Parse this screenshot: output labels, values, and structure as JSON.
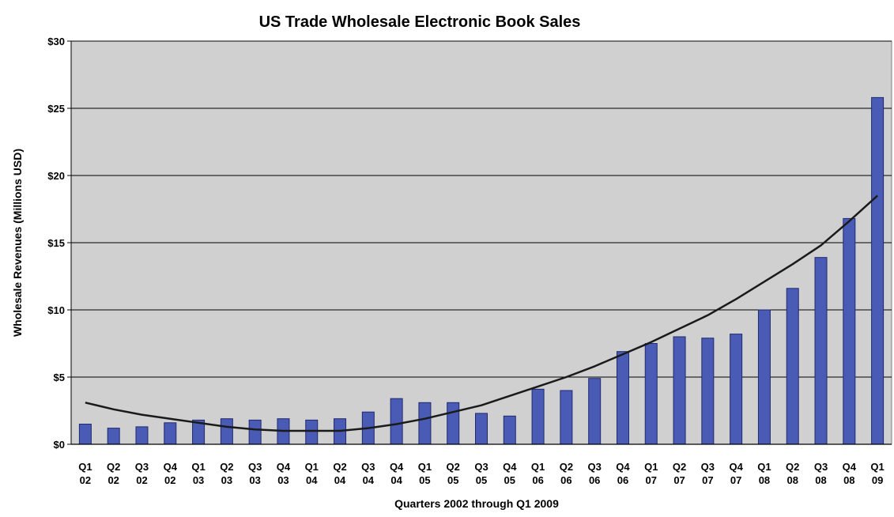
{
  "chart_data": {
    "type": "bar",
    "title": "US Trade Wholesale Electronic Book Sales",
    "xlabel": "Quarters 2002 through Q1 2009",
    "ylabel": "Wholesale Revenues (Millions USD)",
    "ylim": [
      0,
      30
    ],
    "yticks": [
      "$0",
      "$5",
      "$10",
      "$15",
      "$20",
      "$25",
      "$30"
    ],
    "grid": true,
    "legend": "none",
    "categories": [
      [
        "Q1",
        "02"
      ],
      [
        "Q2",
        "02"
      ],
      [
        "Q3",
        "02"
      ],
      [
        "Q4",
        "02"
      ],
      [
        "Q1",
        "03"
      ],
      [
        "Q2",
        "03"
      ],
      [
        "Q3",
        "03"
      ],
      [
        "Q4",
        "03"
      ],
      [
        "Q1",
        "04"
      ],
      [
        "Q2",
        "04"
      ],
      [
        "Q3",
        "04"
      ],
      [
        "Q4",
        "04"
      ],
      [
        "Q1",
        "05"
      ],
      [
        "Q2",
        "05"
      ],
      [
        "Q3",
        "05"
      ],
      [
        "Q4",
        "05"
      ],
      [
        "Q1",
        "06"
      ],
      [
        "Q2",
        "06"
      ],
      [
        "Q3",
        "06"
      ],
      [
        "Q4",
        "06"
      ],
      [
        "Q1",
        "07"
      ],
      [
        "Q2",
        "07"
      ],
      [
        "Q3",
        "07"
      ],
      [
        "Q4",
        "07"
      ],
      [
        "Q1",
        "08"
      ],
      [
        "Q2",
        "08"
      ],
      [
        "Q3",
        "08"
      ],
      [
        "Q4",
        "08"
      ],
      [
        "Q1",
        "09"
      ]
    ],
    "values": [
      1.5,
      1.2,
      1.3,
      1.6,
      1.8,
      1.9,
      1.8,
      1.9,
      1.8,
      1.9,
      2.4,
      3.4,
      3.1,
      3.1,
      2.3,
      2.1,
      4.1,
      4.0,
      4.9,
      6.9,
      7.5,
      8.0,
      7.9,
      8.2,
      10.0,
      11.6,
      13.9,
      16.8,
      25.8
    ],
    "trendline": [
      3.1,
      2.6,
      2.2,
      1.9,
      1.6,
      1.3,
      1.1,
      1.0,
      1.0,
      1.0,
      1.2,
      1.5,
      1.9,
      2.4,
      2.9,
      3.6,
      4.3,
      5.0,
      5.8,
      6.7,
      7.6,
      8.6,
      9.6,
      10.8,
      12.1,
      13.4,
      14.8,
      16.6,
      18.5
    ],
    "colors": {
      "bar_fill": "#4a5bb5",
      "bar_stroke": "#1f2a6e",
      "plot_bg": "#d0d0d0",
      "gridline": "#000000",
      "trendline": "#1a1a1a"
    }
  }
}
